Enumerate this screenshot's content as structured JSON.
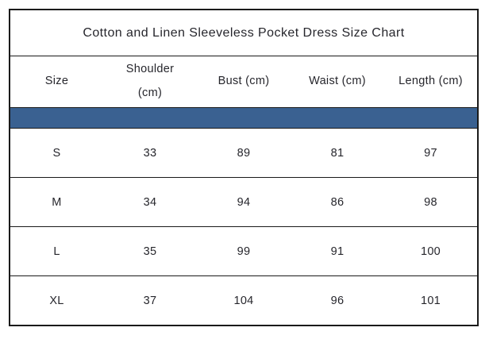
{
  "colors": {
    "band_blue": "#3a6191",
    "border": "#1a1a1a",
    "text": "#26262c"
  },
  "size_chart": {
    "title": "Cotton and Linen Sleeveless Pocket Dress Size Chart",
    "columns": [
      {
        "id": "size",
        "label": "Size",
        "lines": [
          "Size"
        ]
      },
      {
        "id": "shoulder",
        "label": "Shoulder (cm)",
        "lines": [
          "Shoulder",
          "(cm)"
        ]
      },
      {
        "id": "bust",
        "label": "Bust (cm)",
        "lines": [
          "Bust (cm)"
        ]
      },
      {
        "id": "waist",
        "label": "Waist (cm)",
        "lines": [
          "Waist (cm)"
        ]
      },
      {
        "id": "length",
        "label": "Length (cm)",
        "lines": [
          "Length (cm)"
        ]
      }
    ],
    "rows": [
      {
        "size": "S",
        "values": [
          "S",
          "33",
          "89",
          "81",
          "97"
        ]
      },
      {
        "size": "M",
        "values": [
          "M",
          "34",
          "94",
          "86",
          "98"
        ]
      },
      {
        "size": "L",
        "values": [
          "L",
          "35",
          "99",
          "91",
          "100"
        ]
      },
      {
        "size": "XL",
        "values": [
          "XL",
          "37",
          "104",
          "96",
          "101"
        ]
      }
    ]
  }
}
